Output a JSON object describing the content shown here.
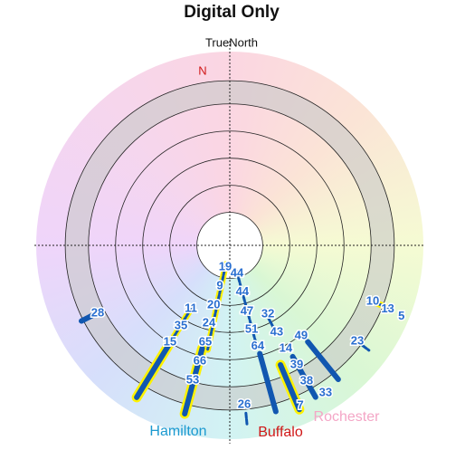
{
  "chart_data": {
    "type": "polar",
    "title": "Digital Only",
    "subtitle": "TrueNorth",
    "north_label": "N",
    "rlim": [
      0,
      100
    ],
    "rticks": [
      17,
      31,
      45,
      59,
      73,
      85
    ],
    "grid": true,
    "line_color": "#1157b0",
    "highlight_color": "#fff200",
    "label_color": "#2a6fd0",
    "cities": [
      {
        "name": "Hamilton",
        "color": "#1c9ad0"
      },
      {
        "name": "Buffalo",
        "color": "#d01818"
      },
      {
        "name": "Rochester",
        "color": "#f4a6c6"
      }
    ],
    "segments": [
      {
        "azimuth": 192,
        "r0": 10,
        "r1": 55,
        "thick": false,
        "highlight": true
      },
      {
        "azimuth": 195,
        "r0": 55,
        "r1": 90,
        "thick": true,
        "highlight": true
      },
      {
        "azimuth": 211.5,
        "r0": 37,
        "r1": 58,
        "thick": false,
        "highlight": true
      },
      {
        "azimuth": 211.5,
        "r0": 58,
        "r1": 92,
        "thick": true,
        "highlight": true
      },
      {
        "azimuth": 165,
        "r0": 14,
        "r1": 54,
        "thick": false,
        "highlight": false
      },
      {
        "azimuth": 164.5,
        "r0": 58,
        "r1": 89,
        "thick": true,
        "highlight": false
      },
      {
        "azimuth": 243,
        "r0": 79,
        "r1": 86,
        "thick": true,
        "highlight": false
      },
      {
        "azimuth": 111.5,
        "r0": 80,
        "r1": 89,
        "thick": false,
        "highlight": true
      },
      {
        "azimuth": 127,
        "r0": 86,
        "r1": 90,
        "thick": false,
        "highlight": false
      },
      {
        "azimuth": 141,
        "r0": 64,
        "r1": 89,
        "thick": true,
        "highlight": false
      },
      {
        "azimuth": 157,
        "r0": 67,
        "r1": 92,
        "thick": true,
        "highlight": true
      },
      {
        "azimuth": 150.5,
        "r0": 66,
        "r1": 90,
        "thick": true,
        "highlight": false
      },
      {
        "azimuth": 152,
        "r0": 42,
        "r1": 52,
        "thick": false,
        "highlight": false
      },
      {
        "azimuth": 174.5,
        "r0": 87,
        "r1": 93,
        "thick": false,
        "highlight": false
      }
    ],
    "channels": [
      {
        "label": "19",
        "azimuth": 191.8,
        "r": 11.4
      },
      {
        "label": "44",
        "azimuth": 165.5,
        "r": 15
      },
      {
        "label": "9",
        "azimuth": 193.7,
        "r": 21.6
      },
      {
        "label": "44",
        "azimuth": 165,
        "r": 25
      },
      {
        "label": "20",
        "azimuth": 195,
        "r": 32
      },
      {
        "label": "11",
        "azimuth": 211.6,
        "r": 38.4
      },
      {
        "label": "47",
        "azimuth": 165.4,
        "r": 35.2
      },
      {
        "label": "32",
        "azimuth": 151,
        "r": 40.6
      },
      {
        "label": "28",
        "azimuth": 242.8,
        "r": 76.7
      },
      {
        "label": "35",
        "azimuth": 211.2,
        "r": 48.7
      },
      {
        "label": "24",
        "azimuth": 195,
        "r": 41.6
      },
      {
        "label": "51",
        "azimuth": 165.5,
        "r": 45
      },
      {
        "label": "43",
        "azimuth": 151.6,
        "r": 51
      },
      {
        "label": "49",
        "azimuth": 141.7,
        "r": 59.5
      },
      {
        "label": "10",
        "azimuth": 111.4,
        "r": 79.3
      },
      {
        "label": "13",
        "azimuth": 112,
        "r": 88
      },
      {
        "label": "5",
        "azimuth": 112.5,
        "r": 96
      },
      {
        "label": "15",
        "azimuth": 211.7,
        "r": 58.8
      },
      {
        "label": "65",
        "azimuth": 194.2,
        "r": 51.5
      },
      {
        "label": "64",
        "azimuth": 164.5,
        "r": 54
      },
      {
        "label": "14",
        "azimuth": 151.5,
        "r": 60.6
      },
      {
        "label": "23",
        "azimuth": 126.9,
        "r": 82.4
      },
      {
        "label": "66",
        "azimuth": 194.5,
        "r": 61.8
      },
      {
        "label": "39",
        "azimuth": 150.7,
        "r": 70.7
      },
      {
        "label": "38",
        "azimuth": 150.5,
        "r": 80.5
      },
      {
        "label": "53",
        "azimuth": 195.4,
        "r": 72.2
      },
      {
        "label": "33",
        "azimuth": 147,
        "r": 90.8
      },
      {
        "label": "26",
        "azimuth": 174.8,
        "r": 82.6
      },
      {
        "label": "7",
        "azimuth": 156.2,
        "r": 90.4
      }
    ]
  }
}
